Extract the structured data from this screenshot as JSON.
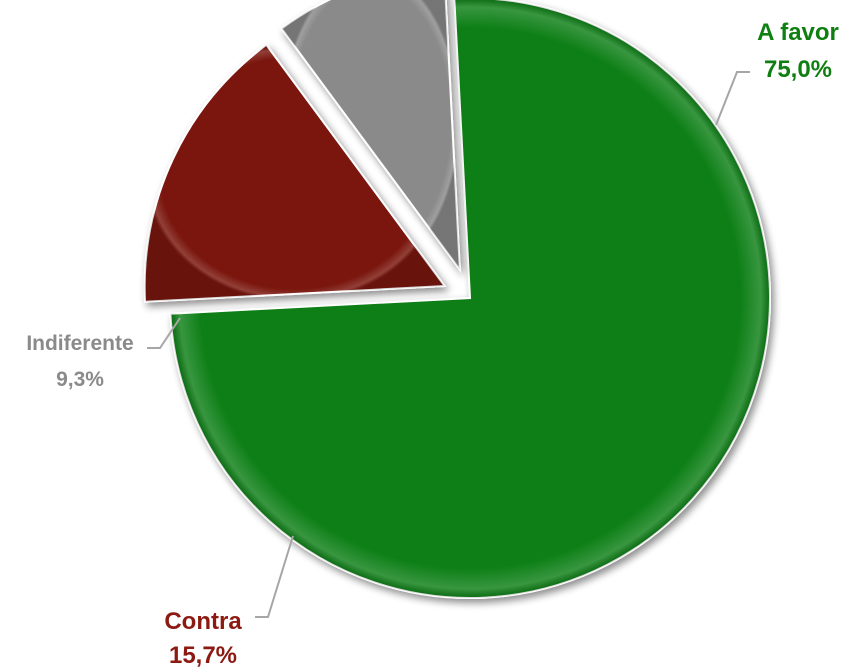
{
  "chart_data": {
    "type": "pie",
    "title": "",
    "slices": [
      {
        "label": "A favor",
        "value": 75.0,
        "value_label": "75,0%",
        "color": "#0f7f12",
        "label_color": "#0f7f12"
      },
      {
        "label": "Contra",
        "value": 15.7,
        "value_label": "15,7%",
        "color": "#7a1410",
        "label_color": "#8c1a12"
      },
      {
        "label": "Indiferente",
        "value": 9.3,
        "value_label": "9,3%",
        "color": "#8a8a8a",
        "label_color": "#8a8a8a"
      }
    ],
    "legend": "none",
    "exploded": [
      "Contra",
      "Indiferente"
    ],
    "style": "3d-shaded"
  }
}
